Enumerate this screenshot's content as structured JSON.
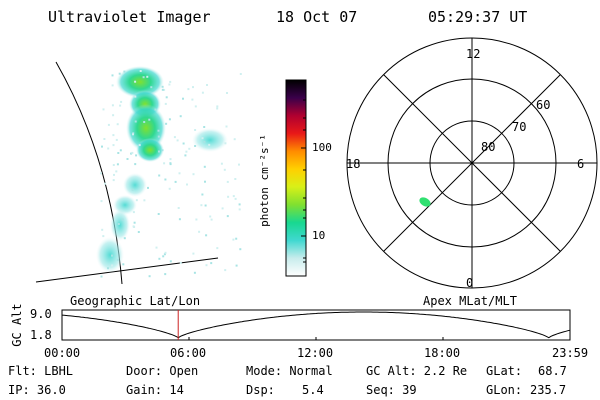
{
  "header": {
    "instrument": "Ultraviolet Imager",
    "date": "18 Oct 07",
    "time": "05:29:37 UT"
  },
  "colorbar": {
    "label": "photon cm⁻²s⁻¹",
    "ticks": [
      "100",
      "10"
    ]
  },
  "polar_plot": {
    "mlt_labels": [
      "12",
      "18",
      "6",
      "0"
    ],
    "lat_labels": [
      "60",
      "70",
      "80"
    ]
  },
  "panels": {
    "left_caption": "Geographic Lat/Lon",
    "right_caption": "Apex MLat/MLT"
  },
  "altitude_plot": {
    "ylabel": "GC Alt",
    "yticks": [
      "9.0",
      "1.8"
    ],
    "xticks": [
      "00:00",
      "06:00",
      "12:00",
      "18:00",
      "23:59"
    ],
    "marker_hour": 5.49
  },
  "info": {
    "filter": "Flt: LBHL",
    "ip": "IP: 36.0",
    "door": "Door: Open",
    "gain": "Gain: 14",
    "mode": "Mode: Normal",
    "dsp_label": "Dsp:",
    "dsp_value": "5.4",
    "gc_alt": "GC Alt: 2.2 Re",
    "seq": "Seq: 39",
    "glat_label": "GLat:",
    "glat_value": "68.7",
    "glon_label": "GLon:",
    "glon_value": "235.7"
  },
  "colors": {
    "marker": "#cc2222",
    "colorbar_stops": [
      "#ffffff",
      "#c8ecec",
      "#40d8d0",
      "#18d890",
      "#80e030",
      "#d8f018",
      "#ffd000",
      "#ff8c00",
      "#e81818",
      "#b00030",
      "#3a004a",
      "#000000"
    ]
  }
}
